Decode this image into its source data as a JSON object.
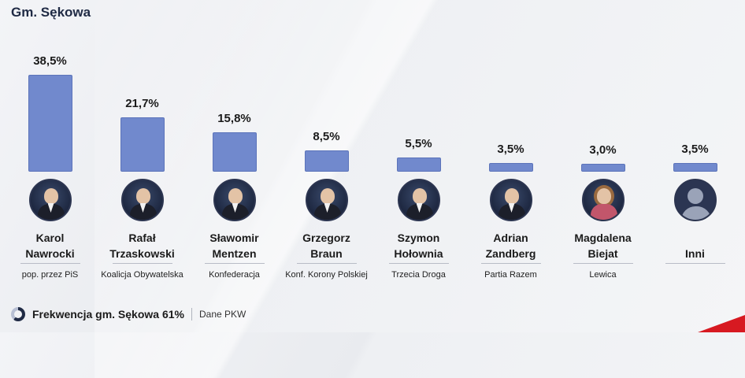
{
  "header": {
    "title": "Gm. Sękowa"
  },
  "chart_data": {
    "type": "bar",
    "title": "Gm. Sękowa",
    "ylim": [
      0,
      38.5
    ],
    "categories": [
      "Karol Nawrocki",
      "Rafał Trzaskowski",
      "Sławomir Mentzen",
      "Grzegorz Braun",
      "Szymon Hołownia",
      "Adrian Zandberg",
      "Magdalena Biejat",
      "Inni"
    ],
    "values": [
      38.5,
      21.7,
      15.8,
      8.5,
      5.5,
      3.5,
      3.0,
      3.5
    ],
    "value_labels": [
      "38,5%",
      "21,7%",
      "15,8%",
      "8,5%",
      "5,5%",
      "3,5%",
      "3,0%",
      "3,5%"
    ],
    "bar_color": "#7189cd"
  },
  "candidates": [
    {
      "name_line1": "Karol",
      "name_line2": "Nawrocki",
      "party": "pop. przez PiS",
      "avatar": "portrait-man"
    },
    {
      "name_line1": "Rafał",
      "name_line2": "Trzaskowski",
      "party": "Koalicja Obywatelska",
      "avatar": "portrait-man"
    },
    {
      "name_line1": "Sławomir",
      "name_line2": "Mentzen",
      "party": "Konfederacja",
      "avatar": "portrait-man"
    },
    {
      "name_line1": "Grzegorz",
      "name_line2": "Braun",
      "party": "Konf. Korony Polskiej",
      "avatar": "portrait-man"
    },
    {
      "name_line1": "Szymon",
      "name_line2": "Hołownia",
      "party": "Trzecia Droga",
      "avatar": "portrait-man"
    },
    {
      "name_line1": "Adrian",
      "name_line2": "Zandberg",
      "party": "Partia Razem",
      "avatar": "portrait-man"
    },
    {
      "name_line1": "Magdalena",
      "name_line2": "Biejat",
      "party": "Lewica",
      "avatar": "portrait-woman"
    },
    {
      "name_line1": "",
      "name_line2": "Inni",
      "party": "",
      "avatar": "generic-person"
    }
  ],
  "footer": {
    "turnout_label": "Frekwencja gm. Sękowa 61%",
    "turnout_value": 61,
    "source": "Dane PKW"
  },
  "colors": {
    "accent": "#d71921",
    "title": "#1f2a44"
  }
}
